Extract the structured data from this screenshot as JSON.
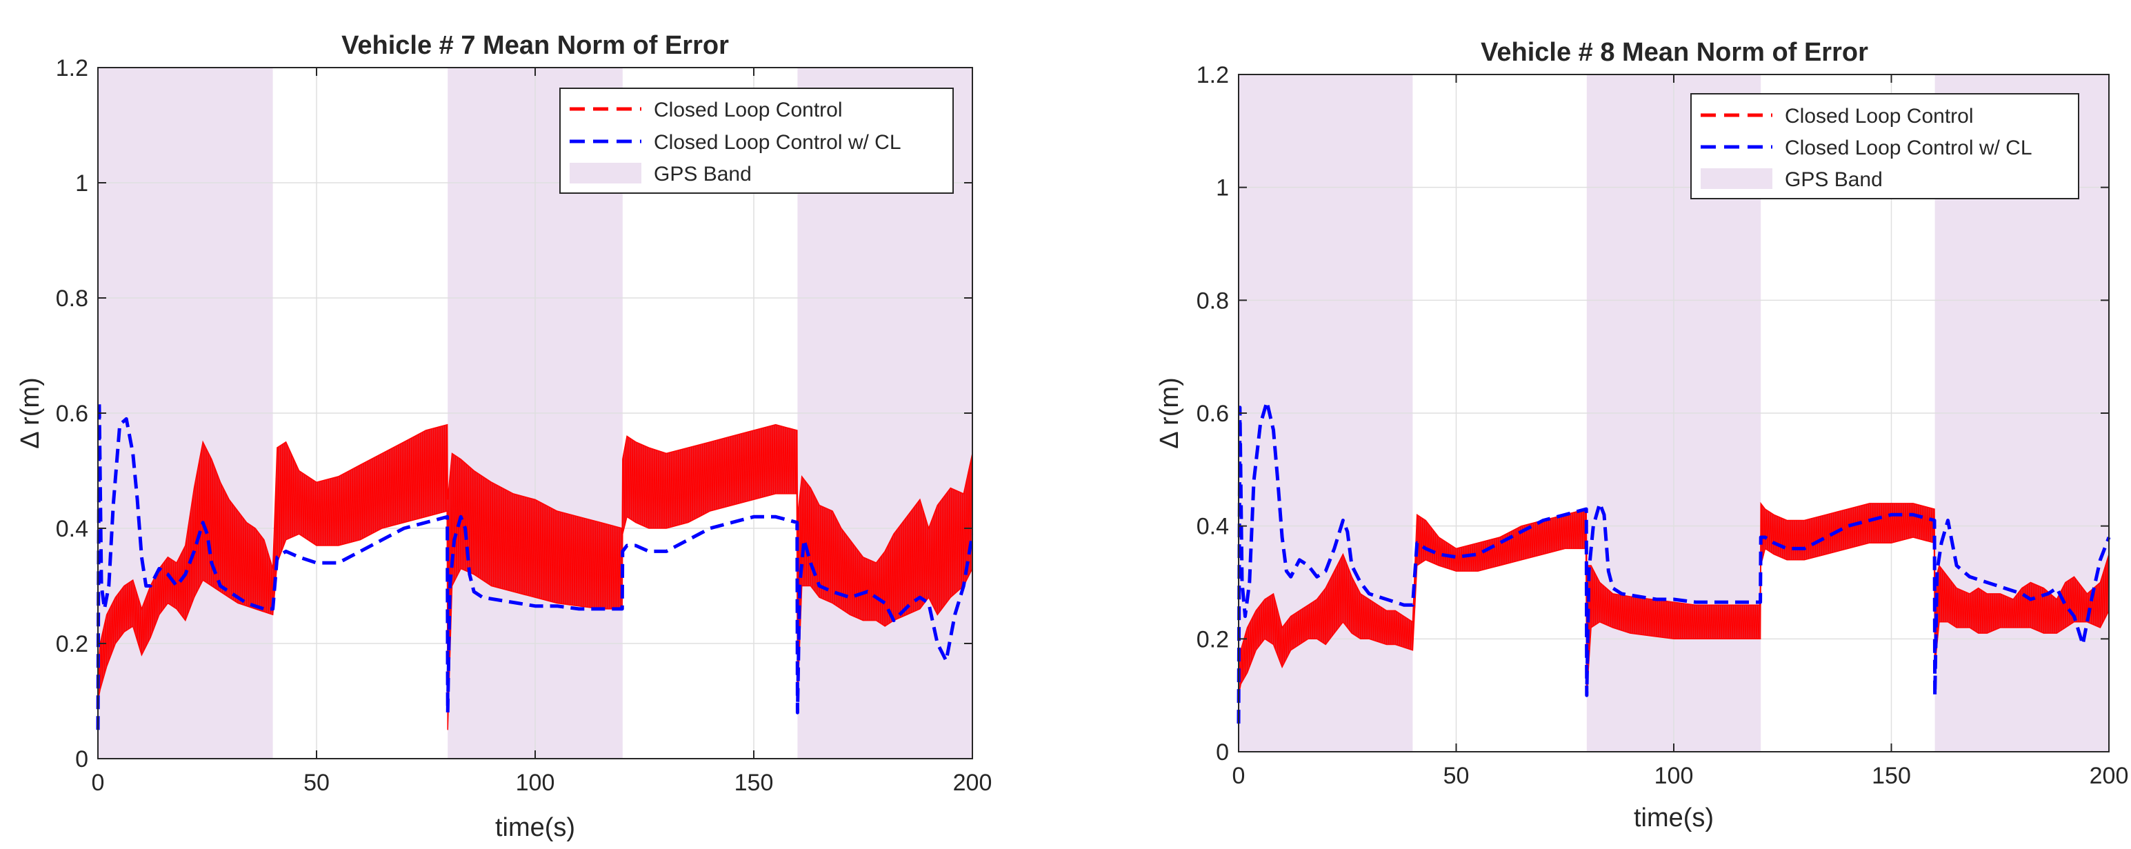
{
  "figure": {
    "colors": {
      "closed_loop": "#ff0000",
      "closed_loop_cl": "#0000ff",
      "gps_band": "#ede1f1",
      "grid": "#dfdfdf",
      "axes": "#262626"
    }
  },
  "chart_data": [
    {
      "type": "line",
      "title": "Vehicle # 7 Mean Norm of Error",
      "xlabel": "time(s)",
      "ylabel": "Δ r(m)",
      "xlim": [
        0,
        200
      ],
      "ylim": [
        0,
        1.2
      ],
      "xticks": [
        0,
        50,
        100,
        150,
        200
      ],
      "yticks": [
        0,
        0.2,
        0.4,
        0.6,
        0.8,
        1,
        1.2
      ],
      "xtick_labels": [
        "0",
        "50",
        "100",
        "150",
        "200"
      ],
      "ytick_labels": [
        "0",
        "0.2",
        "0.4",
        "0.6",
        "0.8",
        "1",
        "1.2"
      ],
      "grid": true,
      "legend": {
        "position": "top-right",
        "entries": [
          "Closed Loop Control",
          "Closed Loop Control w/ CL",
          "GPS Band"
        ]
      },
      "gps_bands": [
        [
          0,
          40
        ],
        [
          80,
          120
        ],
        [
          160,
          200
        ]
      ],
      "series": [
        {
          "name": "Closed Loop Control",
          "style": "dashed",
          "band": {
            "x": [
              0,
              0.5,
              2,
              4,
              6,
              8,
              10,
              12,
              14,
              16,
              18,
              20,
              22,
              24,
              26,
              28,
              30,
              32,
              34,
              36,
              38,
              40,
              41,
              43,
              46,
              50,
              55,
              60,
              65,
              70,
              75,
              79.9,
              80,
              81,
              83,
              86,
              90,
              95,
              100,
              105,
              110,
              115,
              119.9,
              120,
              121,
              123,
              126,
              130,
              135,
              140,
              145,
              150,
              155,
              159.9,
              160,
              161,
              163,
              165,
              168,
              170,
              172,
              175,
              178,
              180,
              182,
              185,
              188,
              190,
              192,
              195,
              198,
              200
            ],
            "low": [
              0.1,
              0.12,
              0.16,
              0.2,
              0.22,
              0.23,
              0.18,
              0.21,
              0.25,
              0.27,
              0.26,
              0.24,
              0.28,
              0.31,
              0.3,
              0.29,
              0.28,
              0.27,
              0.265,
              0.26,
              0.255,
              0.25,
              0.34,
              0.38,
              0.39,
              0.37,
              0.37,
              0.38,
              0.4,
              0.41,
              0.42,
              0.43,
              0.05,
              0.3,
              0.33,
              0.32,
              0.3,
              0.29,
              0.28,
              0.27,
              0.265,
              0.26,
              0.26,
              0.39,
              0.42,
              0.41,
              0.4,
              0.4,
              0.41,
              0.43,
              0.44,
              0.45,
              0.46,
              0.46,
              0.1,
              0.3,
              0.3,
              0.28,
              0.27,
              0.26,
              0.25,
              0.24,
              0.24,
              0.23,
              0.24,
              0.25,
              0.26,
              0.28,
              0.25,
              0.28,
              0.3,
              0.33
            ],
            "high": [
              0.15,
              0.2,
              0.25,
              0.28,
              0.3,
              0.31,
              0.26,
              0.3,
              0.33,
              0.35,
              0.34,
              0.37,
              0.47,
              0.55,
              0.52,
              0.48,
              0.45,
              0.43,
              0.41,
              0.4,
              0.38,
              0.33,
              0.54,
              0.55,
              0.5,
              0.48,
              0.49,
              0.51,
              0.53,
              0.55,
              0.57,
              0.58,
              0.45,
              0.53,
              0.52,
              0.5,
              0.48,
              0.46,
              0.45,
              0.43,
              0.42,
              0.41,
              0.4,
              0.52,
              0.56,
              0.55,
              0.54,
              0.53,
              0.54,
              0.55,
              0.56,
              0.57,
              0.58,
              0.57,
              0.42,
              0.49,
              0.47,
              0.44,
              0.43,
              0.4,
              0.38,
              0.35,
              0.34,
              0.36,
              0.39,
              0.42,
              0.45,
              0.4,
              0.44,
              0.47,
              0.46,
              0.53
            ]
          }
        },
        {
          "name": "Closed Loop Control w/ CL",
          "style": "dashed",
          "x": [
            0,
            0.3,
            0.8,
            1.5,
            2.5,
            3.5,
            5,
            6.5,
            8,
            9,
            10,
            11,
            12,
            14,
            16,
            18,
            20,
            22,
            24,
            25,
            26,
            28,
            30,
            32,
            34,
            36,
            38,
            40,
            41,
            43,
            46,
            50,
            55,
            60,
            65,
            70,
            75,
            79.9,
            80,
            80.5,
            81.5,
            83,
            84,
            85,
            86,
            88,
            92,
            96,
            100,
            105,
            110,
            115,
            119.9,
            120,
            121,
            123,
            126,
            130,
            135,
            140,
            145,
            150,
            155,
            159.9,
            160,
            160.5,
            161.5,
            163,
            165,
            168,
            172,
            176,
            180,
            182,
            186,
            188,
            190,
            192,
            194,
            196,
            198,
            200
          ],
          "y": [
            0.05,
            0.62,
            0.3,
            0.26,
            0.3,
            0.44,
            0.58,
            0.59,
            0.53,
            0.45,
            0.35,
            0.3,
            0.3,
            0.33,
            0.32,
            0.3,
            0.32,
            0.36,
            0.41,
            0.39,
            0.34,
            0.3,
            0.29,
            0.28,
            0.27,
            0.265,
            0.26,
            0.26,
            0.35,
            0.36,
            0.35,
            0.34,
            0.34,
            0.36,
            0.38,
            0.4,
            0.41,
            0.42,
            0.08,
            0.3,
            0.38,
            0.42,
            0.4,
            0.32,
            0.29,
            0.28,
            0.275,
            0.27,
            0.265,
            0.265,
            0.26,
            0.26,
            0.26,
            0.36,
            0.37,
            0.37,
            0.36,
            0.36,
            0.38,
            0.4,
            0.41,
            0.42,
            0.42,
            0.41,
            0.08,
            0.3,
            0.38,
            0.34,
            0.3,
            0.29,
            0.28,
            0.29,
            0.27,
            0.24,
            0.27,
            0.28,
            0.27,
            0.2,
            0.17,
            0.25,
            0.3,
            0.39
          ]
        }
      ]
    },
    {
      "type": "line",
      "title": "Vehicle # 8 Mean Norm of Error",
      "xlabel": "time(s)",
      "ylabel": "Δ r(m)",
      "xlim": [
        0,
        200
      ],
      "ylim": [
        0,
        1.2
      ],
      "xticks": [
        0,
        50,
        100,
        150,
        200
      ],
      "yticks": [
        0,
        0.2,
        0.4,
        0.6,
        0.8,
        1,
        1.2
      ],
      "xtick_labels": [
        "0",
        "50",
        "100",
        "150",
        "200"
      ],
      "ytick_labels": [
        "0",
        "0.2",
        "0.4",
        "0.6",
        "0.8",
        "1",
        "1.2"
      ],
      "grid": true,
      "legend": {
        "position": "top-right",
        "entries": [
          "Closed Loop Control",
          "Closed Loop Control w/ CL",
          "GPS Band"
        ]
      },
      "gps_bands": [
        [
          0,
          40
        ],
        [
          80,
          120
        ],
        [
          160,
          200
        ]
      ],
      "series": [
        {
          "name": "Closed Loop Control",
          "style": "dashed",
          "band": {
            "x": [
              0,
              0.5,
              2,
              4,
              6,
              8,
              10,
              12,
              14,
              16,
              18,
              20,
              22,
              24,
              26,
              28,
              30,
              32,
              34,
              36,
              38,
              40,
              41,
              43,
              46,
              50,
              55,
              60,
              65,
              70,
              75,
              79.9,
              80,
              81,
              83,
              86,
              90,
              95,
              100,
              105,
              110,
              115,
              119.9,
              120,
              121,
              123,
              126,
              130,
              135,
              140,
              145,
              150,
              155,
              159.9,
              160,
              161,
              163,
              165,
              168,
              170,
              172,
              175,
              178,
              180,
              182,
              185,
              188,
              190,
              192,
              195,
              198,
              200
            ],
            "low": [
              0.1,
              0.12,
              0.14,
              0.18,
              0.2,
              0.19,
              0.15,
              0.18,
              0.19,
              0.2,
              0.2,
              0.19,
              0.21,
              0.23,
              0.21,
              0.2,
              0.2,
              0.195,
              0.19,
              0.19,
              0.185,
              0.18,
              0.33,
              0.34,
              0.33,
              0.32,
              0.32,
              0.33,
              0.34,
              0.35,
              0.36,
              0.36,
              0.1,
              0.22,
              0.23,
              0.22,
              0.21,
              0.205,
              0.2,
              0.2,
              0.2,
              0.2,
              0.2,
              0.33,
              0.36,
              0.35,
              0.34,
              0.34,
              0.35,
              0.36,
              0.37,
              0.37,
              0.38,
              0.37,
              0.15,
              0.23,
              0.23,
              0.22,
              0.22,
              0.21,
              0.21,
              0.22,
              0.22,
              0.22,
              0.22,
              0.21,
              0.21,
              0.22,
              0.23,
              0.23,
              0.22,
              0.25
            ],
            "high": [
              0.14,
              0.18,
              0.22,
              0.25,
              0.27,
              0.28,
              0.22,
              0.24,
              0.25,
              0.26,
              0.27,
              0.29,
              0.32,
              0.35,
              0.31,
              0.28,
              0.27,
              0.26,
              0.25,
              0.25,
              0.24,
              0.23,
              0.42,
              0.41,
              0.38,
              0.36,
              0.37,
              0.38,
              0.4,
              0.41,
              0.42,
              0.43,
              0.33,
              0.33,
              0.3,
              0.28,
              0.275,
              0.27,
              0.265,
              0.26,
              0.26,
              0.26,
              0.26,
              0.44,
              0.43,
              0.42,
              0.41,
              0.41,
              0.42,
              0.43,
              0.44,
              0.44,
              0.44,
              0.43,
              0.3,
              0.33,
              0.31,
              0.29,
              0.28,
              0.29,
              0.28,
              0.28,
              0.27,
              0.29,
              0.3,
              0.29,
              0.27,
              0.3,
              0.31,
              0.28,
              0.3,
              0.35
            ]
          }
        },
        {
          "name": "Closed Loop Control w/ CL",
          "style": "dashed",
          "x": [
            0,
            0.3,
            0.8,
            1.5,
            2.5,
            3.5,
            5,
            6.5,
            8,
            9,
            10,
            11,
            12,
            14,
            16,
            18,
            20,
            22,
            24,
            25,
            26,
            28,
            30,
            32,
            34,
            36,
            38,
            40,
            41,
            43,
            46,
            50,
            55,
            60,
            65,
            70,
            75,
            79.9,
            80,
            80.5,
            81.5,
            83,
            84,
            85,
            86,
            88,
            92,
            96,
            100,
            105,
            110,
            115,
            119.9,
            120,
            121,
            123,
            126,
            130,
            135,
            140,
            145,
            150,
            155,
            159.9,
            160,
            160.5,
            161.5,
            163,
            165,
            168,
            172,
            176,
            180,
            182,
            186,
            188,
            190,
            192,
            194,
            196,
            198,
            200
          ],
          "y": [
            0.05,
            0.61,
            0.3,
            0.24,
            0.3,
            0.48,
            0.58,
            0.62,
            0.57,
            0.48,
            0.38,
            0.32,
            0.31,
            0.34,
            0.33,
            0.31,
            0.32,
            0.36,
            0.41,
            0.39,
            0.33,
            0.3,
            0.28,
            0.275,
            0.27,
            0.265,
            0.26,
            0.26,
            0.37,
            0.36,
            0.35,
            0.345,
            0.35,
            0.37,
            0.39,
            0.41,
            0.42,
            0.43,
            0.1,
            0.32,
            0.4,
            0.44,
            0.42,
            0.32,
            0.29,
            0.28,
            0.275,
            0.27,
            0.27,
            0.265,
            0.265,
            0.265,
            0.265,
            0.38,
            0.38,
            0.37,
            0.36,
            0.36,
            0.38,
            0.4,
            0.41,
            0.42,
            0.42,
            0.41,
            0.1,
            0.32,
            0.37,
            0.41,
            0.33,
            0.31,
            0.3,
            0.29,
            0.28,
            0.27,
            0.28,
            0.29,
            0.26,
            0.24,
            0.19,
            0.27,
            0.34,
            0.38
          ]
        }
      ]
    }
  ]
}
